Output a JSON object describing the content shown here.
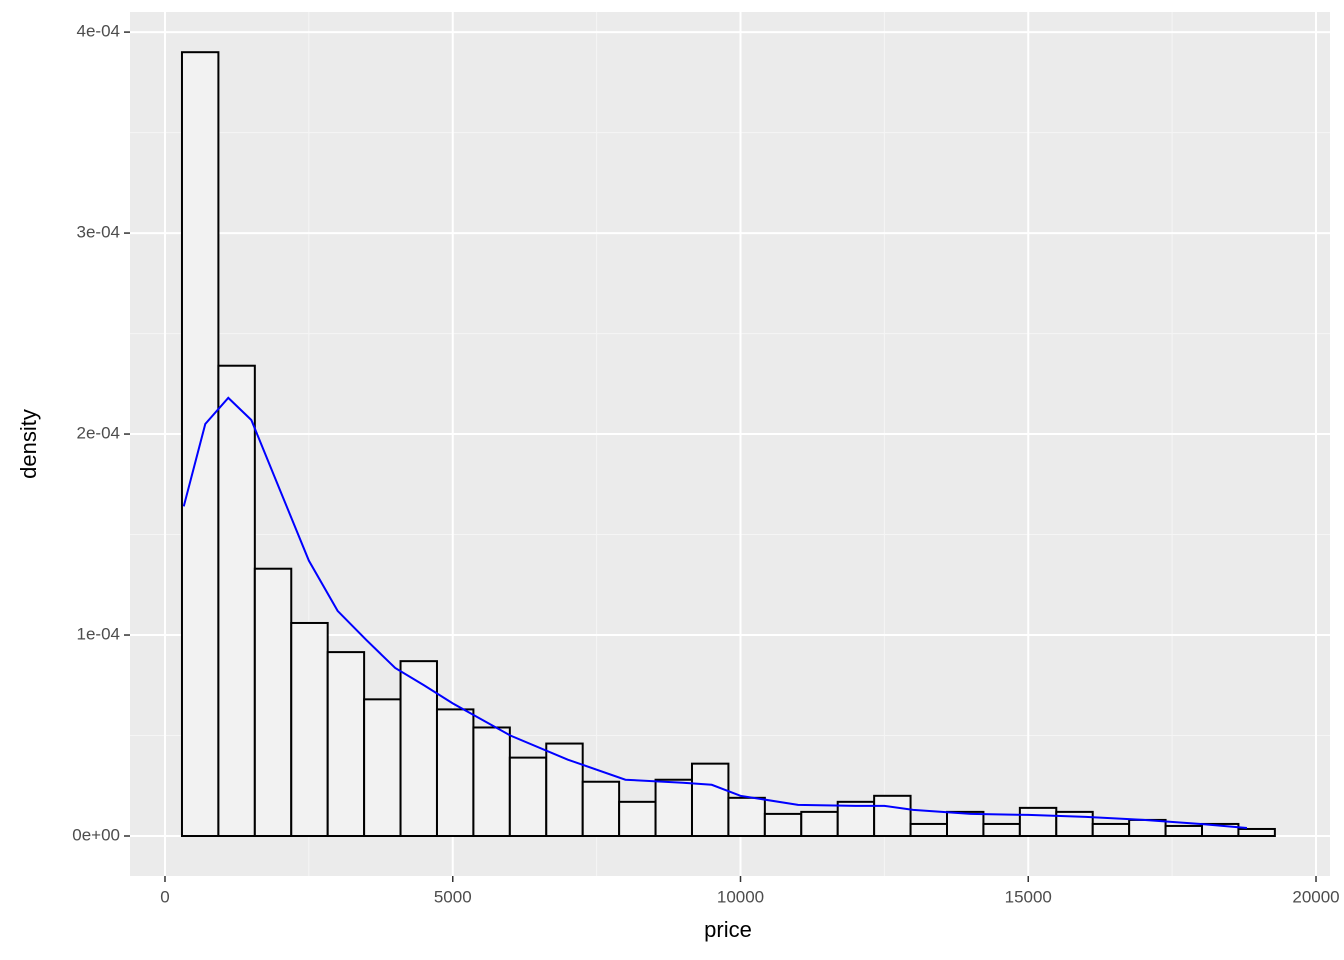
{
  "chart_data": {
    "type": "histogram",
    "x_label": "price",
    "y_label": "density",
    "bins": [
      295,
      928,
      1561,
      2194,
      2827,
      3460,
      4093,
      4726,
      5359,
      5992,
      6625,
      7258,
      7891,
      8524,
      9157,
      9790,
      10423,
      11056,
      11689,
      12322,
      12955,
      13588,
      14221,
      14854,
      15487,
      16120,
      16753,
      17386,
      18019,
      18652,
      19285
    ],
    "values": [
      0.00039,
      0.000234,
      0.000133,
      0.000106,
      9.15e-05,
      6.8e-05,
      8.7e-05,
      6.3e-05,
      5.4e-05,
      3.9e-05,
      4.6e-05,
      2.7e-05,
      1.7e-05,
      2.8e-05,
      3.6e-05,
      1.9e-05,
      1.1e-05,
      1.2e-05,
      1.7e-05,
      2e-05,
      6e-06,
      1.2e-05,
      6e-06,
      1.4e-05,
      1.2e-05,
      6e-06,
      8e-06,
      5e-06,
      6e-06,
      3.5e-06
    ],
    "fill": "#f2f2f2",
    "edge_color": "#000000",
    "density": {
      "color": "#0000ff",
      "x": [
        326,
        700,
        1100,
        1500,
        2000,
        2500,
        3000,
        3500,
        4000,
        4500,
        5000,
        6000,
        7000,
        8000,
        9000,
        9500,
        10000,
        11000,
        12000,
        12500,
        13000,
        14000,
        15000,
        16000,
        17000,
        18000,
        18800
      ],
      "values": [
        0.000164,
        0.000205,
        0.000218,
        0.000207,
        0.000172,
        0.000137,
        0.000112,
        9.75e-05,
        8.36e-05,
        7.5e-05,
        6.6e-05,
        5e-05,
        3.8e-05,
        2.8e-05,
        2.65e-05,
        2.55e-05,
        2e-05,
        1.55e-05,
        1.5e-05,
        1.5e-05,
        1.3e-05,
        1.1e-05,
        1.05e-05,
        9.5e-06,
        8e-06,
        6e-06,
        4e-06
      ]
    },
    "xlim": [
      -608,
      20243
    ],
    "ylim": [
      -1.99e-05,
      0.00041
    ],
    "xticks": [
      0,
      5000,
      10000,
      15000,
      20000
    ],
    "yticks": [
      {
        "value": 0,
        "label": "0e+00"
      },
      {
        "value": 0.0001,
        "label": "1e-04"
      },
      {
        "value": 0.0002,
        "label": "2e-04"
      },
      {
        "value": 0.0003,
        "label": "3e-04"
      },
      {
        "value": 0.0004,
        "label": "4e-04"
      }
    ],
    "grid": true
  }
}
